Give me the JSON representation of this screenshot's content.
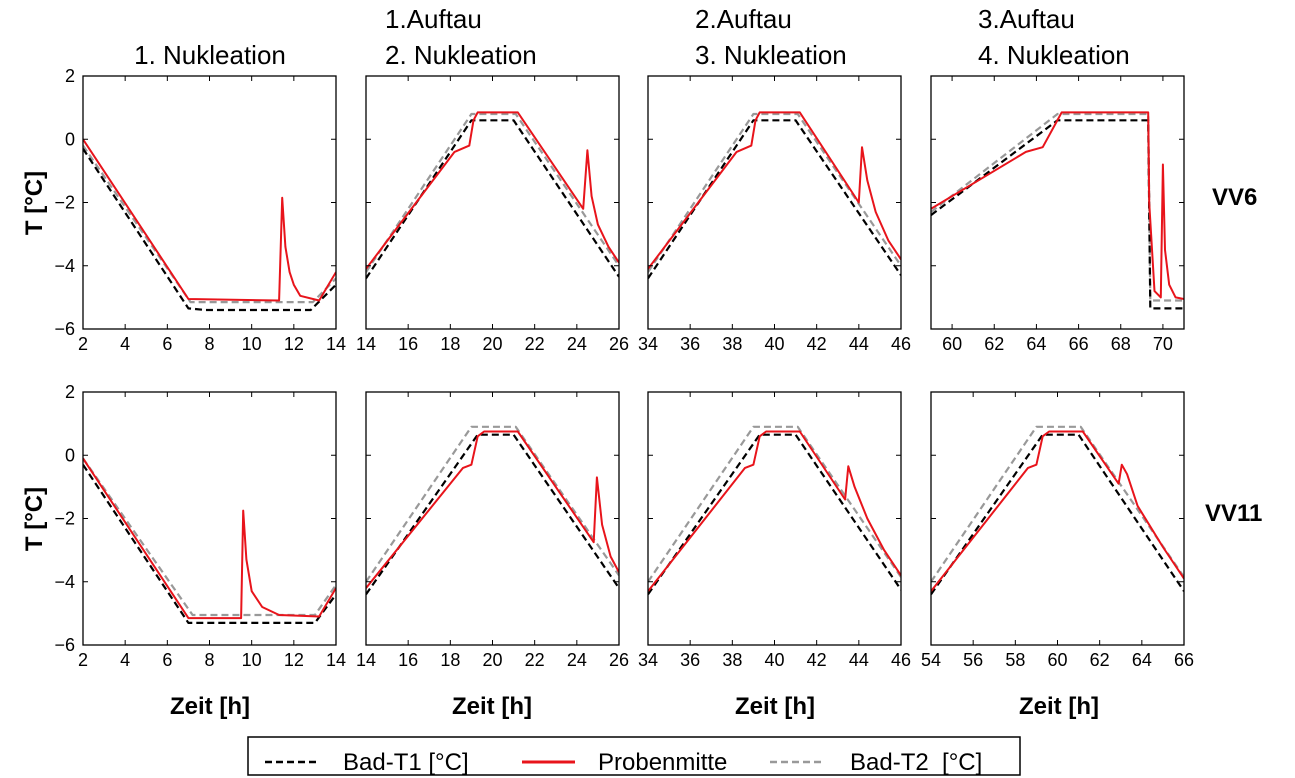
{
  "column_titles": [
    [
      "1. Nukleation"
    ],
    [
      "1.Auftau",
      "2. Nukleation"
    ],
    [
      "2.Auftau",
      "3. Nukleation"
    ],
    [
      "3.Auftau",
      "4. Nukleation"
    ]
  ],
  "row_labels": [
    "VV6",
    "VV11"
  ],
  "ylabel": "T [°C]",
  "xlabel": "Zeit [h]",
  "legend": [
    {
      "label": "Bad-T1 [°C]",
      "color": "#000000",
      "dash": "dashed"
    },
    {
      "label": "Probenmitte",
      "color": "#e8141b",
      "dash": "solid"
    },
    {
      "label": "Bad-T2  [°C]",
      "color": "#999999",
      "dash": "dashed"
    }
  ],
  "chart_data": [
    {
      "type": "line",
      "row": "VV6",
      "panel": 1,
      "xlim": [
        2,
        14
      ],
      "ylim": [
        -6,
        2
      ],
      "xticks": [
        2,
        4,
        6,
        8,
        10,
        12,
        14
      ],
      "yticks": [
        -6,
        -4,
        -2,
        0,
        2
      ],
      "grid": false,
      "series": [
        {
          "name": "Bad-T1 [°C]",
          "x": [
            2,
            7,
            7.8,
            12.8,
            14
          ],
          "y": [
            -0.3,
            -5.35,
            -5.4,
            -5.4,
            -4.6
          ]
        },
        {
          "name": "Bad-T2  [°C]",
          "x": [
            2,
            7.1,
            12.9,
            14
          ],
          "y": [
            -0.2,
            -5.15,
            -5.15,
            -4.4
          ]
        },
        {
          "name": "Probenmitte",
          "x": [
            2,
            7,
            11.3,
            11.45,
            11.6,
            11.8,
            12.0,
            12.3,
            13.2,
            14
          ],
          "y": [
            0.0,
            -5.05,
            -5.1,
            -1.85,
            -3.4,
            -4.2,
            -4.6,
            -4.95,
            -5.1,
            -4.2
          ]
        }
      ]
    },
    {
      "type": "line",
      "row": "VV6",
      "panel": 2,
      "xlim": [
        14,
        26
      ],
      "ylim": [
        -6,
        2
      ],
      "xticks": [
        14,
        16,
        18,
        20,
        22,
        24,
        26
      ],
      "yticks": [
        -6,
        -4,
        -2,
        0,
        2
      ],
      "grid": false,
      "series": [
        {
          "name": "Bad-T1 [°C]",
          "x": [
            14,
            19,
            21,
            26
          ],
          "y": [
            -4.4,
            0.6,
            0.6,
            -4.35
          ]
        },
        {
          "name": "Bad-T2  [°C]",
          "x": [
            14,
            19,
            21.1,
            26
          ],
          "y": [
            -4.2,
            0.8,
            0.8,
            -4.0
          ]
        },
        {
          "name": "Probenmitte",
          "x": [
            14,
            18.2,
            18.9,
            19.1,
            19.3,
            21.2,
            24.3,
            24.5,
            24.7,
            25.0,
            25.5,
            26
          ],
          "y": [
            -4.1,
            -0.4,
            -0.2,
            0.6,
            0.85,
            0.85,
            -2.2,
            -0.35,
            -1.8,
            -2.7,
            -3.4,
            -3.9
          ]
        }
      ]
    },
    {
      "type": "line",
      "row": "VV6",
      "panel": 3,
      "xlim": [
        34,
        46
      ],
      "ylim": [
        -6,
        2
      ],
      "xticks": [
        34,
        36,
        38,
        40,
        42,
        44,
        46
      ],
      "yticks": [
        -6,
        -4,
        -2,
        0,
        2
      ],
      "grid": false,
      "series": [
        {
          "name": "Bad-T1 [°C]",
          "x": [
            34,
            39,
            41,
            46
          ],
          "y": [
            -4.4,
            0.6,
            0.6,
            -4.3
          ]
        },
        {
          "name": "Bad-T2  [°C]",
          "x": [
            34,
            39,
            41.1,
            46
          ],
          "y": [
            -4.2,
            0.8,
            0.8,
            -4.0
          ]
        },
        {
          "name": "Probenmitte",
          "x": [
            34,
            38.2,
            38.9,
            39.1,
            39.3,
            41.2,
            44.0,
            44.15,
            44.4,
            44.8,
            45.4,
            46
          ],
          "y": [
            -4.1,
            -0.4,
            -0.2,
            0.6,
            0.85,
            0.85,
            -2.0,
            -0.25,
            -1.3,
            -2.3,
            -3.2,
            -3.8
          ]
        }
      ]
    },
    {
      "type": "line",
      "row": "VV6",
      "panel": 4,
      "xlim": [
        59,
        71
      ],
      "ylim": [
        -6,
        2
      ],
      "xticks": [
        60,
        62,
        64,
        66,
        68,
        70
      ],
      "yticks": [
        -6,
        -4,
        -2,
        0,
        2
      ],
      "grid": false,
      "series": [
        {
          "name": "Bad-T1 [°C]",
          "x": [
            59,
            65,
            69.3,
            69.4,
            71
          ],
          "y": [
            -2.4,
            0.6,
            0.6,
            -5.35,
            -5.35
          ]
        },
        {
          "name": "Bad-T2  [°C]",
          "x": [
            59,
            65,
            69.3,
            69.4,
            71
          ],
          "y": [
            -2.3,
            0.8,
            0.8,
            -5.1,
            -5.1
          ]
        },
        {
          "name": "Probenmitte",
          "x": [
            59,
            63.5,
            64.3,
            65.2,
            69.3,
            69.35,
            69.6,
            69.9,
            70.0,
            70.1,
            70.3,
            70.6,
            71
          ],
          "y": [
            -2.2,
            -0.4,
            -0.25,
            0.85,
            0.85,
            -2.0,
            -4.8,
            -5.0,
            -0.8,
            -3.5,
            -4.6,
            -5.0,
            -5.05
          ]
        }
      ]
    },
    {
      "type": "line",
      "row": "VV11",
      "panel": 1,
      "xlim": [
        2,
        14
      ],
      "ylim": [
        -6,
        2
      ],
      "xticks": [
        2,
        4,
        6,
        8,
        10,
        12,
        14
      ],
      "yticks": [
        -6,
        -4,
        -2,
        0,
        2
      ],
      "grid": false,
      "series": [
        {
          "name": "Bad-T1 [°C]",
          "x": [
            2,
            7,
            13,
            14
          ],
          "y": [
            -0.3,
            -5.3,
            -5.3,
            -4.4
          ]
        },
        {
          "name": "Bad-T2  [°C]",
          "x": [
            2,
            7.2,
            13,
            14
          ],
          "y": [
            -0.1,
            -5.05,
            -5.05,
            -4.1
          ]
        },
        {
          "name": "Probenmitte",
          "x": [
            2,
            7,
            9.5,
            9.6,
            9.75,
            10.0,
            10.5,
            11.3,
            13.2,
            14
          ],
          "y": [
            -0.1,
            -5.15,
            -5.15,
            -1.75,
            -3.3,
            -4.3,
            -4.8,
            -5.05,
            -5.1,
            -4.2
          ]
        }
      ]
    },
    {
      "type": "line",
      "row": "VV11",
      "panel": 2,
      "xlim": [
        14,
        26
      ],
      "ylim": [
        -6,
        2
      ],
      "xticks": [
        14,
        16,
        18,
        20,
        22,
        24,
        26
      ],
      "yticks": [
        -6,
        -4,
        -2,
        0,
        2
      ],
      "grid": false,
      "series": [
        {
          "name": "Bad-T1 [°C]",
          "x": [
            14,
            19.3,
            21,
            26
          ],
          "y": [
            -4.4,
            0.65,
            0.65,
            -4.2
          ]
        },
        {
          "name": "Bad-T2  [°C]",
          "x": [
            14,
            19,
            21.1,
            26
          ],
          "y": [
            -4.0,
            0.9,
            0.9,
            -3.8
          ]
        },
        {
          "name": "Probenmitte",
          "x": [
            14,
            18.6,
            19.0,
            19.3,
            19.6,
            21.2,
            24.8,
            24.95,
            25.2,
            25.6,
            26
          ],
          "y": [
            -4.2,
            -0.4,
            -0.3,
            0.6,
            0.75,
            0.75,
            -2.75,
            -0.7,
            -2.2,
            -3.2,
            -3.7
          ]
        }
      ]
    },
    {
      "type": "line",
      "row": "VV11",
      "panel": 3,
      "xlim": [
        34,
        46
      ],
      "ylim": [
        -6,
        2
      ],
      "xticks": [
        34,
        36,
        38,
        40,
        42,
        44,
        46
      ],
      "yticks": [
        -6,
        -4,
        -2,
        0,
        2
      ],
      "grid": false,
      "series": [
        {
          "name": "Bad-T1 [°C]",
          "x": [
            34,
            39.3,
            41,
            46
          ],
          "y": [
            -4.4,
            0.65,
            0.65,
            -4.25
          ]
        },
        {
          "name": "Bad-T2  [°C]",
          "x": [
            34,
            39,
            41.1,
            46
          ],
          "y": [
            -4.0,
            0.9,
            0.9,
            -3.85
          ]
        },
        {
          "name": "Probenmitte",
          "x": [
            34,
            38.6,
            39.0,
            39.3,
            39.6,
            41.2,
            43.35,
            43.5,
            43.8,
            44.4,
            45.2,
            46
          ],
          "y": [
            -4.3,
            -0.4,
            -0.3,
            0.6,
            0.75,
            0.75,
            -1.4,
            -0.35,
            -1.0,
            -2.0,
            -3.0,
            -3.8
          ]
        }
      ]
    },
    {
      "type": "line",
      "row": "VV11",
      "panel": 4,
      "xlim": [
        54,
        66
      ],
      "ylim": [
        -6,
        2
      ],
      "xticks": [
        54,
        56,
        58,
        60,
        62,
        64,
        66
      ],
      "yticks": [
        -6,
        -4,
        -2,
        0,
        2
      ],
      "grid": false,
      "series": [
        {
          "name": "Bad-T1 [°C]",
          "x": [
            54,
            59.3,
            61,
            66
          ],
          "y": [
            -4.4,
            0.65,
            0.65,
            -4.3
          ]
        },
        {
          "name": "Bad-T2  [°C]",
          "x": [
            54,
            59,
            61.1,
            66
          ],
          "y": [
            -4.0,
            0.9,
            0.9,
            -3.85
          ]
        },
        {
          "name": "Probenmitte",
          "x": [
            54,
            58.6,
            59.0,
            59.3,
            59.6,
            61.2,
            62.9,
            63.05,
            63.3,
            63.8,
            65.0,
            66
          ],
          "y": [
            -4.3,
            -0.4,
            -0.3,
            0.6,
            0.75,
            0.75,
            -0.9,
            -0.3,
            -0.6,
            -1.6,
            -2.9,
            -3.9
          ]
        }
      ]
    }
  ]
}
